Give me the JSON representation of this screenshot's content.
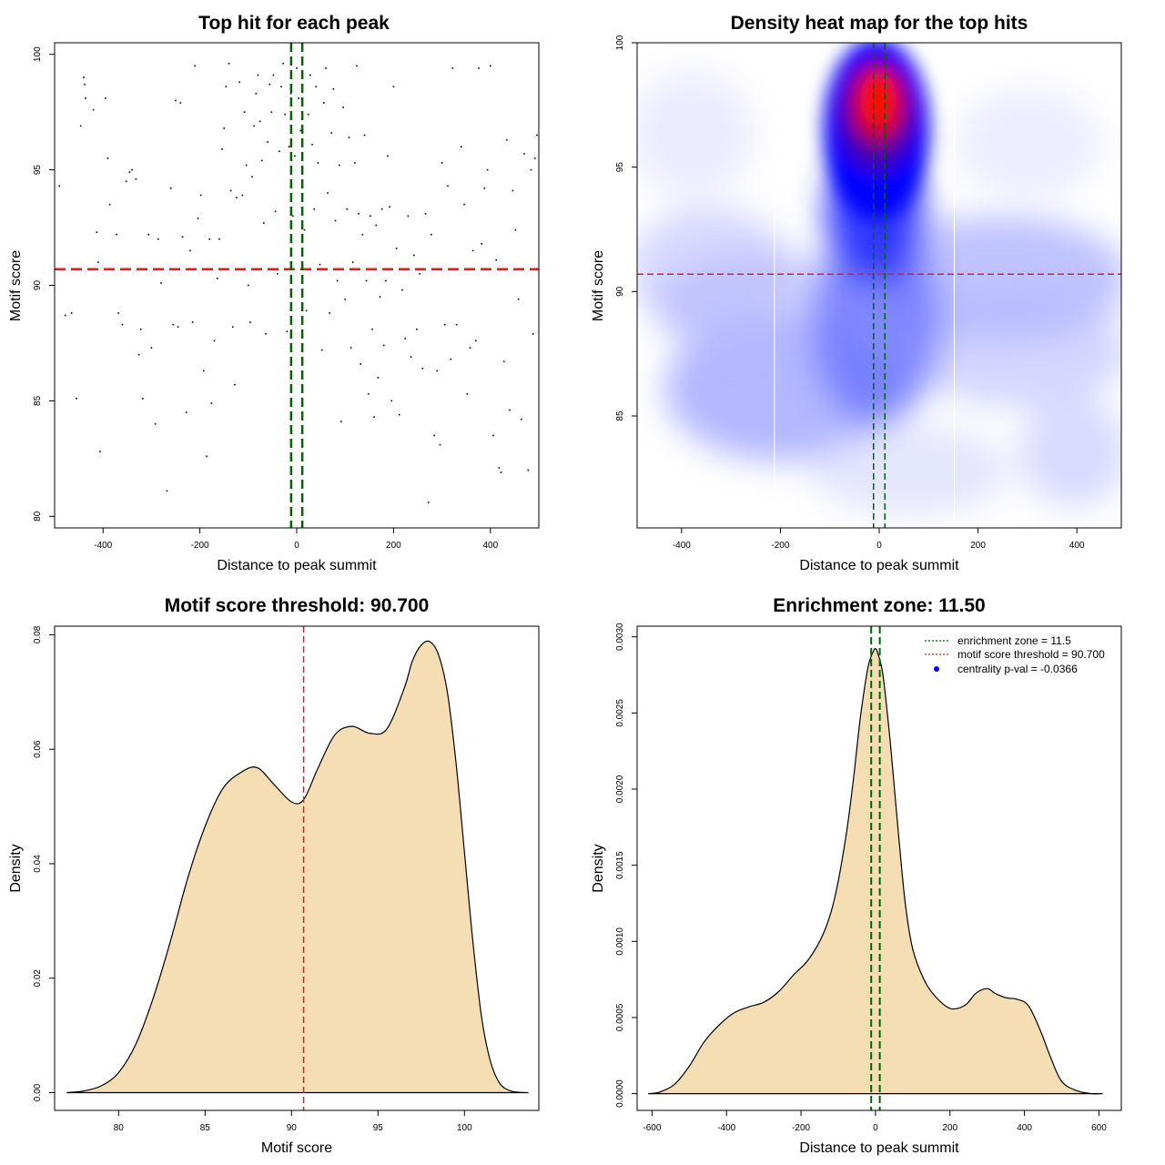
{
  "colors": {
    "fill": "#F5DEB3",
    "green": "#006400",
    "red": "#CD2626",
    "blue": "#0000FF",
    "heat_red": "#FF0000"
  },
  "chart_data": [
    {
      "id": "scatter",
      "type": "scatter",
      "title": "Top hit for each peak",
      "xlabel": "Distance to peak summit",
      "ylabel": "Motif score",
      "xlim": [
        -500,
        500
      ],
      "ylim": [
        79.5,
        100.5
      ],
      "xticks": [
        -400,
        -200,
        0,
        200,
        400
      ],
      "yticks": [
        80,
        85,
        90,
        95,
        100
      ],
      "hline": 90.7,
      "vlines": [
        -11.5,
        11.5
      ],
      "points": [
        [
          -490,
          94.3
        ],
        [
          -478,
          88.7
        ],
        [
          -465,
          88.8
        ],
        [
          -455,
          85.1
        ],
        [
          -446,
          96.9
        ],
        [
          -440,
          99.0
        ],
        [
          -438,
          98.7
        ],
        [
          -436,
          98.1
        ],
        [
          -420,
          97.6
        ],
        [
          -413,
          92.3
        ],
        [
          -410,
          91.0
        ],
        [
          -406,
          82.8
        ],
        [
          -395,
          98.1
        ],
        [
          -390,
          95.5
        ],
        [
          -386,
          93.5
        ],
        [
          -372,
          92.2
        ],
        [
          -368,
          88.8
        ],
        [
          -360,
          88.3
        ],
        [
          -352,
          94.5
        ],
        [
          -345,
          94.9
        ],
        [
          -340,
          95.0
        ],
        [
          -332,
          94.6
        ],
        [
          -326,
          87.0
        ],
        [
          -322,
          88.1
        ],
        [
          -318,
          85.1
        ],
        [
          -306,
          92.2
        ],
        [
          -300,
          87.3
        ],
        [
          -292,
          84.0
        ],
        [
          -286,
          92.0
        ],
        [
          -280,
          90.1
        ],
        [
          -268,
          81.1
        ],
        [
          -260,
          94.2
        ],
        [
          -255,
          88.3
        ],
        [
          -250,
          98.0
        ],
        [
          -245,
          88.2
        ],
        [
          -240,
          97.9
        ],
        [
          -236,
          92.1
        ],
        [
          -228,
          84.5
        ],
        [
          -220,
          91.5
        ],
        [
          -215,
          88.4
        ],
        [
          -210,
          99.5
        ],
        [
          -204,
          92.9
        ],
        [
          -198,
          93.9
        ],
        [
          -192,
          86.3
        ],
        [
          -186,
          82.6
        ],
        [
          -180,
          92.0
        ],
        [
          -176,
          84.9
        ],
        [
          -170,
          87.6
        ],
        [
          -164,
          90.3
        ],
        [
          -160,
          92.0
        ],
        [
          -154,
          95.9
        ],
        [
          -150,
          96.8
        ],
        [
          -146,
          98.6
        ],
        [
          -140,
          99.6
        ],
        [
          -136,
          94.1
        ],
        [
          -132,
          88.2
        ],
        [
          -128,
          85.7
        ],
        [
          -124,
          93.8
        ],
        [
          -118,
          98.8
        ],
        [
          -112,
          93.9
        ],
        [
          -108,
          97.5
        ],
        [
          -104,
          95.2
        ],
        [
          -100,
          90.0
        ],
        [
          -96,
          88.4
        ],
        [
          -92,
          94.7
        ],
        [
          -88,
          96.9
        ],
        [
          -84,
          98.3
        ],
        [
          -80,
          99.1
        ],
        [
          -76,
          97.1
        ],
        [
          -72,
          95.4
        ],
        [
          -68,
          92.7
        ],
        [
          -64,
          87.9
        ],
        [
          -60,
          96.2
        ],
        [
          -56,
          98.7
        ],
        [
          -52,
          97.5
        ],
        [
          -48,
          99.1
        ],
        [
          -44,
          93.2
        ],
        [
          -40,
          90.5
        ],
        [
          -36,
          95.8
        ],
        [
          -32,
          98.6
        ],
        [
          -28,
          99.6
        ],
        [
          -24,
          97.4
        ],
        [
          -20,
          88.0
        ],
        [
          -16,
          96.0
        ],
        [
          -12,
          98.3
        ],
        [
          -8,
          93.0
        ],
        [
          -4,
          95.6
        ],
        [
          0,
          99.4
        ],
        [
          4,
          98.1
        ],
        [
          8,
          96.7
        ],
        [
          12,
          94.3
        ],
        [
          16,
          92.4
        ],
        [
          20,
          88.9
        ],
        [
          24,
          97.4
        ],
        [
          28,
          99.1
        ],
        [
          32,
          96.1
        ],
        [
          36,
          93.3
        ],
        [
          40,
          98.6
        ],
        [
          44,
          95.3
        ],
        [
          48,
          90.9
        ],
        [
          52,
          87.2
        ],
        [
          56,
          97.9
        ],
        [
          60,
          99.4
        ],
        [
          64,
          94.0
        ],
        [
          68,
          88.8
        ],
        [
          72,
          96.6
        ],
        [
          76,
          98.5
        ],
        [
          80,
          92.8
        ],
        [
          84,
          90.2
        ],
        [
          88,
          95.2
        ],
        [
          92,
          84.1
        ],
        [
          96,
          97.7
        ],
        [
          100,
          89.4
        ],
        [
          104,
          93.3
        ],
        [
          108,
          96.4
        ],
        [
          112,
          87.3
        ],
        [
          116,
          91.0
        ],
        [
          120,
          95.3
        ],
        [
          124,
          99.5
        ],
        [
          128,
          93.1
        ],
        [
          132,
          86.6
        ],
        [
          136,
          92.2
        ],
        [
          140,
          96.5
        ],
        [
          144,
          90.2
        ],
        [
          148,
          85.3
        ],
        [
          152,
          93.0
        ],
        [
          156,
          88.1
        ],
        [
          160,
          84.3
        ],
        [
          164,
          92.6
        ],
        [
          168,
          86.0
        ],
        [
          172,
          89.5
        ],
        [
          176,
          93.3
        ],
        [
          180,
          87.4
        ],
        [
          184,
          90.2
        ],
        [
          188,
          95.6
        ],
        [
          192,
          93.4
        ],
        [
          196,
          85.0
        ],
        [
          200,
          98.6
        ],
        [
          206,
          91.6
        ],
        [
          212,
          84.4
        ],
        [
          218,
          89.8
        ],
        [
          224,
          87.7
        ],
        [
          230,
          93.0
        ],
        [
          236,
          86.9
        ],
        [
          242,
          91.3
        ],
        [
          248,
          88.1
        ],
        [
          254,
          90.5
        ],
        [
          260,
          86.4
        ],
        [
          266,
          93.1
        ],
        [
          272,
          80.6
        ],
        [
          278,
          92.2
        ],
        [
          284,
          83.5
        ],
        [
          290,
          86.3
        ],
        [
          296,
          83.1
        ],
        [
          300,
          95.3
        ],
        [
          306,
          88.3
        ],
        [
          312,
          94.3
        ],
        [
          318,
          86.8
        ],
        [
          322,
          99.4
        ],
        [
          330,
          88.3
        ],
        [
          340,
          96.0
        ],
        [
          346,
          93.5
        ],
        [
          352,
          85.3
        ],
        [
          358,
          87.3
        ],
        [
          364,
          91.5
        ],
        [
          370,
          87.6
        ],
        [
          376,
          99.4
        ],
        [
          382,
          91.8
        ],
        [
          388,
          94.2
        ],
        [
          394,
          95.0
        ],
        [
          400,
          99.5
        ],
        [
          406,
          83.5
        ],
        [
          412,
          91.1
        ],
        [
          418,
          82.1
        ],
        [
          422,
          81.9
        ],
        [
          428,
          86.7
        ],
        [
          434,
          96.3
        ],
        [
          440,
          84.6
        ],
        [
          446,
          94.1
        ],
        [
          452,
          92.4
        ],
        [
          458,
          89.4
        ],
        [
          464,
          84.2
        ],
        [
          470,
          95.7
        ],
        [
          478,
          82.0
        ],
        [
          484,
          95.0
        ],
        [
          488,
          87.9
        ],
        [
          492,
          95.5
        ],
        [
          496,
          96.5
        ]
      ]
    },
    {
      "id": "heatmap",
      "type": "heatmap",
      "title": "Density heat map for the top hits",
      "xlabel": "Distance to peak summit",
      "ylabel": "Motif score",
      "xlim": [
        -490,
        490
      ],
      "ylim": [
        80.5,
        100
      ],
      "xticks": [
        -400,
        -200,
        0,
        200,
        400
      ],
      "yticks": [
        85,
        90,
        95,
        100
      ],
      "hline": 90.7,
      "vlines": [
        -11.5,
        11.5
      ],
      "gridlines_x": [
        -212,
        152
      ]
    },
    {
      "id": "score-density",
      "type": "area",
      "title": "Motif score threshold: 90.700",
      "xlabel": "Motif score",
      "ylabel": "Density",
      "xlim": [
        76.3,
        104.3
      ],
      "ylim": [
        -0.0031,
        0.0815
      ],
      "xticks": [
        80,
        85,
        90,
        95,
        100
      ],
      "yticks": [
        0.0,
        0.02,
        0.04,
        0.06,
        0.08
      ],
      "ytick_labels": [
        "0.00",
        "0.02",
        "0.04",
        "0.06",
        "0.08"
      ],
      "vline": 90.7,
      "x": [
        77.0,
        78.0,
        79.0,
        80.0,
        81.0,
        82.0,
        83.0,
        84.0,
        85.0,
        86.0,
        87.0,
        88.0,
        89.0,
        90.0,
        90.7,
        91.5,
        92.5,
        93.5,
        94.5,
        95.5,
        96.5,
        97.0,
        97.5,
        98.0,
        98.5,
        99.0,
        99.5,
        100.0,
        100.5,
        101.0,
        101.5,
        102.0,
        102.5,
        103.0,
        103.7
      ],
      "y": [
        0.0,
        0.0003,
        0.0012,
        0.0035,
        0.0085,
        0.0165,
        0.0265,
        0.0375,
        0.0465,
        0.053,
        0.0558,
        0.0568,
        0.0538,
        0.0508,
        0.0512,
        0.0565,
        0.0625,
        0.064,
        0.0628,
        0.0635,
        0.0705,
        0.0755,
        0.0782,
        0.0788,
        0.0765,
        0.0702,
        0.058,
        0.042,
        0.026,
        0.013,
        0.0055,
        0.0018,
        0.0005,
        0.0001,
        0.0
      ]
    },
    {
      "id": "distance-density",
      "type": "area",
      "title": "Enrichment zone: 11.50",
      "xlabel": "Distance to peak summit",
      "ylabel": "Density",
      "xlim": [
        -640,
        660
      ],
      "ylim": [
        -0.00011,
        0.00307
      ],
      "xticks": [
        -600,
        -400,
        -200,
        0,
        200,
        400,
        600
      ],
      "yticks": [
        0.0,
        0.0005,
        0.001,
        0.0015,
        0.002,
        0.0025,
        0.003
      ],
      "ytick_labels": [
        "0.0000",
        "0.0005",
        "0.0010",
        "0.0015",
        "0.0020",
        "0.0025",
        "0.0030"
      ],
      "vlines": [
        -11.5,
        11.5
      ],
      "x": [
        -610,
        -580,
        -540,
        -500,
        -460,
        -420,
        -380,
        -340,
        -300,
        -260,
        -220,
        -180,
        -140,
        -110,
        -80,
        -60,
        -40,
        -20,
        -5,
        0,
        5,
        20,
        40,
        60,
        80,
        100,
        130,
        160,
        200,
        240,
        270,
        300,
        320,
        350,
        380,
        410,
        440,
        470,
        500,
        540,
        580,
        610
      ],
      "y": [
        0.0,
        1e-05,
        6e-05,
        0.00018,
        0.00034,
        0.00045,
        0.00053,
        0.00057,
        0.0006,
        0.00067,
        0.00078,
        0.00088,
        0.00105,
        0.00128,
        0.00168,
        0.00205,
        0.00248,
        0.0028,
        0.00291,
        0.00292,
        0.0029,
        0.00275,
        0.0023,
        0.00175,
        0.00125,
        0.00095,
        0.00075,
        0.00064,
        0.00056,
        0.00058,
        0.00066,
        0.00069,
        0.00066,
        0.00063,
        0.00062,
        0.00058,
        0.00043,
        0.00024,
        8e-05,
        2e-05,
        0.0,
        0.0
      ],
      "legend": [
        {
          "label": "enrichment zone = 11.5",
          "style": "dotted-green"
        },
        {
          "label": "motif score threshold = 90.700",
          "style": "dotted-red"
        },
        {
          "label": "centrality p-val = -0.0366",
          "style": "blue-dot"
        }
      ]
    }
  ]
}
